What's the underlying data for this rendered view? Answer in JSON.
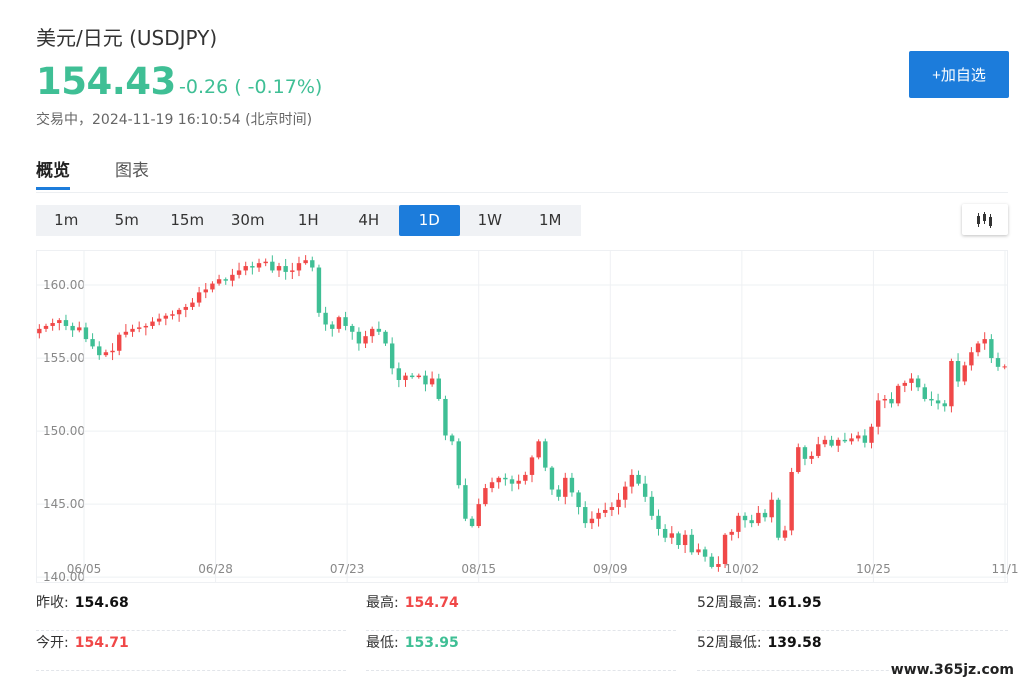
{
  "header": {
    "title": "美元/日元 (USDJPY)",
    "price": "154.43",
    "change": "-0.26 ( -0.17%)",
    "status": "交易中，2024-11-19 16:10:54 (北京时间)",
    "add_button": "+加自选"
  },
  "tabs": [
    {
      "label": "概览"
    },
    {
      "label": "图表"
    }
  ],
  "periods": [
    "1m",
    "5m",
    "15m",
    "30m",
    "1H",
    "4H",
    "1D",
    "1W",
    "1M"
  ],
  "active_period": "1D",
  "colors": {
    "up": "#f04848",
    "down": "#3fbf95",
    "accent": "#1c7cdb"
  },
  "chart_data": {
    "type": "candlestick",
    "y_ticks": [
      "160.00",
      "155.00",
      "150.00",
      "145.00",
      "140.00"
    ],
    "x_ticks": [
      "06/05",
      "06/28",
      "07/23",
      "08/15",
      "09/09",
      "10/02",
      "10/25",
      "11/1"
    ],
    "ylim": [
      139.6,
      162.4
    ],
    "grid": true,
    "closes": [
      157.0,
      157.2,
      157.4,
      157.6,
      157.2,
      156.9,
      157.1,
      156.3,
      155.8,
      155.2,
      155.4,
      155.5,
      156.6,
      156.8,
      157.0,
      157.1,
      157.2,
      157.5,
      157.7,
      157.9,
      158.0,
      158.3,
      158.5,
      158.8,
      159.5,
      159.7,
      160.1,
      160.4,
      160.3,
      160.7,
      161.0,
      161.3,
      161.2,
      161.5,
      161.6,
      161.0,
      161.3,
      160.9,
      161.0,
      161.5,
      161.7,
      161.2,
      158.1,
      157.3,
      157.0,
      157.8,
      157.2,
      156.8,
      156.0,
      156.5,
      157.0,
      156.8,
      156.0,
      154.3,
      153.5,
      153.8,
      153.7,
      153.8,
      153.2,
      153.6,
      152.2,
      149.7,
      149.3,
      146.3,
      144.0,
      143.5,
      145.0,
      146.1,
      146.5,
      146.8,
      146.7,
      146.4,
      146.6,
      147.0,
      148.2,
      149.3,
      147.5,
      146.0,
      145.5,
      146.8,
      145.8,
      144.8,
      143.7,
      144.0,
      144.4,
      144.6,
      144.8,
      145.3,
      146.2,
      147.0,
      146.4,
      145.5,
      144.2,
      143.3,
      142.7,
      143.0,
      142.2,
      142.9,
      141.7,
      141.9,
      141.4,
      140.7,
      140.9,
      142.9,
      143.1,
      144.2,
      143.9,
      143.7,
      144.4,
      144.1,
      145.3,
      142.7,
      143.2,
      147.2,
      148.9,
      148.1,
      148.3,
      149.1,
      149.4,
      149.0,
      149.4,
      149.3,
      149.5,
      149.7,
      149.2,
      150.3,
      152.1,
      152.2,
      151.9,
      153.1,
      153.3,
      153.6,
      153.0,
      152.2,
      152.1,
      151.9,
      151.7,
      154.8,
      153.4,
      154.5,
      155.4,
      156.0,
      156.3,
      155.0,
      154.4,
      154.43
    ]
  },
  "stats": [
    {
      "label": "昨收:",
      "value": "154.68",
      "color": "black"
    },
    {
      "label": "最高:",
      "value": "154.74",
      "color": "red"
    },
    {
      "label": "52周最高:",
      "value": "161.95",
      "color": "black"
    },
    {
      "label": "今开:",
      "value": "154.71",
      "color": "red"
    },
    {
      "label": "最低:",
      "value": "153.95",
      "color": "green"
    },
    {
      "label": "52周最低:",
      "value": "139.58",
      "color": "black"
    }
  ],
  "watermark": "www.365jz.com"
}
